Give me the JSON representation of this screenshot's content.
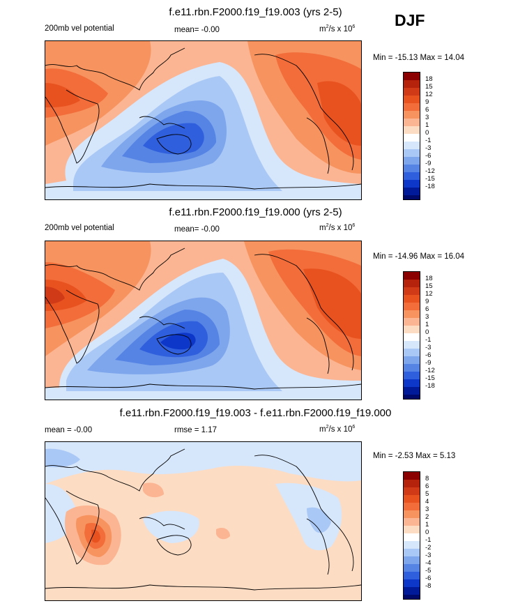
{
  "season": "DJF",
  "units_prefix": "m",
  "units_sup1": "2",
  "units_mid": "/s x 10",
  "units_sup2": "6",
  "panels": [
    {
      "title": "f.e11.rbn.F2000.f19_f19.003 (yrs 2-5)",
      "left_label": "200mb vel potential",
      "center_label": "mean=  -0.00",
      "minmax": "Min = -15.13 Max =  14.04",
      "colorbar_labels": [
        "18",
        "15",
        "12",
        "9",
        "6",
        "3",
        "1",
        "0",
        "-1",
        "-3",
        "-6",
        "-9",
        "-12",
        "-15",
        "-18"
      ],
      "colors": [
        "#8b0000",
        "#b5230c",
        "#d13a17",
        "#e8521f",
        "#f26d3a",
        "#f7935f",
        "#fbb592",
        "#fddcc4",
        "#ffffff",
        "#d6e6fb",
        "#aac8f5",
        "#7ea6ed",
        "#5684e4",
        "#2f5fdc",
        "#0d37c9",
        "#001a9a",
        "#000a6b"
      ],
      "contour_values": [
        -15,
        -12,
        -9,
        -6,
        -3,
        -1,
        0,
        1,
        3,
        6,
        9,
        12
      ]
    },
    {
      "title": "f.e11.rbn.F2000.f19_f19.000 (yrs 2-5)",
      "left_label": "200mb vel potential",
      "center_label": "mean=  -0.00",
      "minmax": "Min = -14.96 Max =  16.04",
      "colorbar_labels": [
        "18",
        "15",
        "12",
        "9",
        "6",
        "3",
        "1",
        "0",
        "-1",
        "-3",
        "-6",
        "-9",
        "-12",
        "-15",
        "-18"
      ],
      "colors": [
        "#8b0000",
        "#b5230c",
        "#d13a17",
        "#e8521f",
        "#f26d3a",
        "#f7935f",
        "#fbb592",
        "#fddcc4",
        "#ffffff",
        "#d6e6fb",
        "#aac8f5",
        "#7ea6ed",
        "#5684e4",
        "#2f5fdc",
        "#0d37c9",
        "#001a9a",
        "#000a6b"
      ],
      "contour_values": [
        -15,
        -12,
        -9,
        -6,
        -3,
        -1,
        0,
        1,
        3,
        6,
        9,
        12,
        15
      ]
    },
    {
      "title": "f.e11.rbn.F2000.f19_f19.003 - f.e11.rbn.F2000.f19_f19.000",
      "left_label": "mean =  -0.00",
      "center_label": "rmse =   1.17",
      "minmax": "Min =  -2.53 Max =   5.13",
      "colorbar_labels": [
        "8",
        "6",
        "5",
        "4",
        "3",
        "2",
        "1",
        "0",
        "-1",
        "-2",
        "-3",
        "-4",
        "-5",
        "-6",
        "-8"
      ],
      "colors": [
        "#8b0000",
        "#b5230c",
        "#d13a17",
        "#e8521f",
        "#f26d3a",
        "#f7935f",
        "#fbb592",
        "#fddcc4",
        "#ffffff",
        "#d6e6fb",
        "#aac8f5",
        "#7ea6ed",
        "#5684e4",
        "#2f5fdc",
        "#0d37c9",
        "#001a9a",
        "#000a6b"
      ],
      "contour_values": [
        -2,
        -1,
        0,
        1,
        2,
        3,
        4,
        5
      ]
    }
  ]
}
